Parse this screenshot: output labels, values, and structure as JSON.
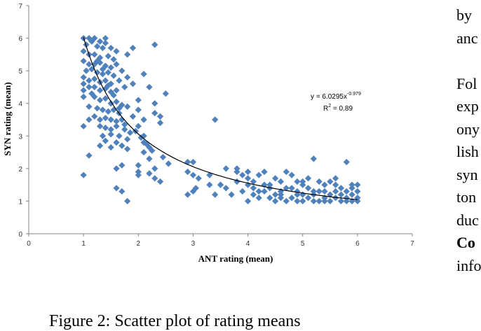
{
  "caption": "Figure 2: Scatter plot of rating means",
  "side_text": {
    "lines": [
      {
        "text": "by",
        "bold": false
      },
      {
        "text": "anc",
        "bold": false
      },
      {
        "text": "",
        "bold": false
      },
      {
        "text": "Fol",
        "bold": false
      },
      {
        "text": "exp",
        "bold": false
      },
      {
        "text": "ony",
        "bold": false
      },
      {
        "text": "lish",
        "bold": false
      },
      {
        "text": "syn",
        "bold": false
      },
      {
        "text": "ton",
        "bold": false
      },
      {
        "text": "duc",
        "bold": false
      },
      {
        "text": "Co",
        "bold": true
      },
      {
        "text": "info",
        "bold": false
      }
    ]
  },
  "chart_data": {
    "type": "scatter",
    "xlabel": "ANT rating (mean)",
    "ylabel": "SYN rating (mean)",
    "xlim": [
      0,
      7
    ],
    "ylim": [
      0,
      7
    ],
    "xticks": [
      0,
      1,
      2,
      3,
      4,
      5,
      6,
      7
    ],
    "yticks": [
      0,
      1,
      2,
      3,
      4,
      5,
      6,
      7
    ],
    "grid": false,
    "marker_color": "#4f81bd",
    "trendline": {
      "type": "power",
      "a": 6.0295,
      "b": -0.979,
      "x_range": [
        1,
        6
      ],
      "equation_prefix": "y = 6.0295x",
      "equation_exponent": "-0.979",
      "r2_prefix": "R",
      "r2_suffix": " = 0.89"
    },
    "points": [
      [
        1.0,
        6.0
      ],
      [
        1.1,
        6.0
      ],
      [
        1.15,
        5.9
      ],
      [
        1.2,
        6.0
      ],
      [
        1.3,
        5.9
      ],
      [
        1.4,
        5.85
      ],
      [
        1.4,
        6.0
      ],
      [
        1.05,
        5.8
      ],
      [
        1.25,
        5.75
      ],
      [
        1.35,
        5.7
      ],
      [
        1.5,
        5.7
      ],
      [
        1.6,
        5.6
      ],
      [
        1.8,
        5.5
      ],
      [
        1.9,
        5.7
      ],
      [
        2.3,
        5.8
      ],
      [
        1.0,
        5.6
      ],
      [
        1.1,
        5.5
      ],
      [
        1.2,
        5.5
      ],
      [
        1.3,
        5.4
      ],
      [
        1.45,
        5.45
      ],
      [
        1.55,
        5.35
      ],
      [
        1.0,
        5.3
      ],
      [
        1.1,
        5.2
      ],
      [
        1.2,
        5.2
      ],
      [
        1.3,
        5.25
      ],
      [
        1.4,
        5.15
      ],
      [
        1.5,
        5.1
      ],
      [
        1.6,
        5.2
      ],
      [
        1.7,
        5.0
      ],
      [
        1.05,
        5.0
      ],
      [
        1.15,
        5.05
      ],
      [
        1.25,
        4.95
      ],
      [
        1.35,
        4.9
      ],
      [
        1.45,
        4.95
      ],
      [
        1.55,
        4.85
      ],
      [
        1.0,
        4.8
      ],
      [
        1.1,
        4.7
      ],
      [
        1.2,
        4.75
      ],
      [
        1.3,
        4.65
      ],
      [
        1.4,
        4.7
      ],
      [
        1.5,
        4.6
      ],
      [
        1.65,
        4.7
      ],
      [
        1.8,
        4.8
      ],
      [
        2.1,
        4.9
      ],
      [
        1.0,
        4.6
      ],
      [
        1.1,
        4.5
      ],
      [
        1.2,
        4.5
      ],
      [
        1.3,
        4.4
      ],
      [
        1.4,
        4.45
      ],
      [
        1.5,
        4.35
      ],
      [
        1.6,
        4.4
      ],
      [
        1.75,
        4.5
      ],
      [
        1.9,
        4.6
      ],
      [
        2.2,
        4.5
      ],
      [
        2.5,
        4.3
      ],
      [
        1.0,
        4.2
      ],
      [
        1.2,
        4.2
      ],
      [
        1.3,
        4.1
      ],
      [
        1.4,
        4.15
      ],
      [
        1.5,
        4.0
      ],
      [
        1.6,
        4.05
      ],
      [
        1.7,
        3.95
      ],
      [
        2.0,
        4.1
      ],
      [
        2.3,
        4.0
      ],
      [
        1.1,
        3.9
      ],
      [
        1.25,
        3.85
      ],
      [
        1.35,
        3.8
      ],
      [
        1.45,
        3.75
      ],
      [
        1.55,
        3.8
      ],
      [
        1.65,
        3.7
      ],
      [
        1.8,
        3.9
      ],
      [
        2.0,
        3.8
      ],
      [
        2.3,
        3.7
      ],
      [
        1.2,
        3.6
      ],
      [
        1.3,
        3.5
      ],
      [
        1.4,
        3.55
      ],
      [
        1.5,
        3.5
      ],
      [
        1.6,
        3.45
      ],
      [
        1.7,
        3.5
      ],
      [
        1.9,
        3.6
      ],
      [
        2.1,
        3.5
      ],
      [
        2.4,
        3.6
      ],
      [
        1.3,
        3.3
      ],
      [
        1.4,
        3.25
      ],
      [
        1.5,
        3.2
      ],
      [
        1.6,
        3.3
      ],
      [
        1.75,
        3.2
      ],
      [
        2.0,
        3.3
      ],
      [
        2.4,
        3.4
      ],
      [
        1.35,
        3.0
      ],
      [
        1.5,
        3.05
      ],
      [
        1.65,
        3.0
      ],
      [
        1.85,
        3.1
      ],
      [
        2.1,
        3.0
      ],
      [
        1.4,
        2.85
      ],
      [
        1.6,
        2.8
      ],
      [
        1.8,
        2.9
      ],
      [
        2.1,
        2.8
      ],
      [
        1.3,
        2.7
      ],
      [
        1.5,
        2.65
      ],
      [
        1.7,
        2.7
      ],
      [
        2.2,
        2.65
      ],
      [
        1.8,
        2.6
      ],
      [
        2.1,
        2.5
      ],
      [
        2.2,
        2.3
      ],
      [
        2.0,
        2.1
      ],
      [
        1.6,
        2.0
      ],
      [
        1.7,
        2.1
      ],
      [
        2.0,
        1.9
      ],
      [
        2.0,
        1.8
      ],
      [
        2.2,
        1.85
      ],
      [
        2.3,
        2.0
      ],
      [
        2.3,
        1.7
      ],
      [
        2.4,
        1.6
      ],
      [
        1.6,
        1.4
      ],
      [
        1.7,
        1.3
      ],
      [
        1.8,
        1.0
      ],
      [
        1.0,
        3.3
      ],
      [
        1.0,
        1.8
      ],
      [
        1.1,
        2.4
      ],
      [
        1.0,
        4.4
      ],
      [
        1.1,
        3.5
      ],
      [
        1.15,
        4.3
      ],
      [
        1.25,
        5.3
      ],
      [
        1.35,
        5.05
      ],
      [
        1.45,
        4.55
      ],
      [
        1.55,
        4.25
      ],
      [
        1.65,
        3.85
      ],
      [
        1.75,
        3.35
      ],
      [
        1.95,
        3.15
      ],
      [
        2.05,
        2.95
      ],
      [
        2.15,
        2.75
      ],
      [
        2.25,
        2.55
      ],
      [
        2.45,
        2.35
      ],
      [
        2.55,
        2.15
      ],
      [
        2.9,
        2.2
      ],
      [
        3.0,
        2.2
      ],
      [
        2.9,
        1.9
      ],
      [
        3.0,
        1.8
      ],
      [
        3.1,
        1.7
      ],
      [
        3.05,
        1.4
      ],
      [
        3.0,
        1.3
      ],
      [
        2.9,
        1.2
      ],
      [
        3.4,
        3.5
      ],
      [
        3.3,
        1.8
      ],
      [
        3.5,
        1.5
      ],
      [
        3.4,
        1.2
      ],
      [
        3.6,
        1.4
      ],
      [
        3.6,
        2.0
      ],
      [
        3.8,
        1.9
      ],
      [
        3.8,
        2.0
      ],
      [
        3.9,
        1.8
      ],
      [
        4.0,
        1.9
      ],
      [
        4.0,
        1.7
      ],
      [
        4.1,
        1.6
      ],
      [
        4.2,
        1.8
      ],
      [
        4.3,
        1.9
      ],
      [
        4.3,
        1.5
      ],
      [
        4.4,
        1.4
      ],
      [
        4.5,
        1.7
      ],
      [
        4.6,
        1.6
      ],
      [
        4.7,
        1.9
      ],
      [
        4.8,
        1.8
      ],
      [
        4.9,
        1.6
      ],
      [
        5.0,
        1.5
      ],
      [
        5.1,
        1.7
      ],
      [
        5.2,
        2.3
      ],
      [
        5.3,
        1.6
      ],
      [
        5.4,
        1.5
      ],
      [
        5.5,
        1.6
      ],
      [
        5.6,
        1.7
      ],
      [
        5.7,
        1.4
      ],
      [
        5.8,
        2.2
      ],
      [
        5.9,
        1.5
      ],
      [
        6.0,
        1.5
      ],
      [
        3.7,
        1.2
      ],
      [
        3.9,
        1.3
      ],
      [
        4.0,
        1.0
      ],
      [
        4.1,
        1.2
      ],
      [
        4.2,
        1.1
      ],
      [
        4.4,
        1.1
      ],
      [
        4.5,
        1.0
      ],
      [
        4.6,
        1.2
      ],
      [
        4.7,
        1.0
      ],
      [
        4.8,
        1.1
      ],
      [
        4.9,
        1.0
      ],
      [
        5.0,
        1.0
      ],
      [
        5.1,
        1.1
      ],
      [
        5.2,
        1.0
      ],
      [
        5.3,
        1.0
      ],
      [
        5.4,
        1.0
      ],
      [
        5.5,
        1.0
      ],
      [
        5.6,
        1.1
      ],
      [
        5.7,
        1.0
      ],
      [
        5.8,
        1.0
      ],
      [
        5.9,
        1.0
      ],
      [
        6.0,
        1.0
      ],
      [
        4.3,
        1.3
      ],
      [
        4.6,
        1.3
      ],
      [
        4.8,
        1.4
      ],
      [
        5.0,
        1.2
      ],
      [
        5.2,
        1.3
      ],
      [
        5.4,
        1.3
      ],
      [
        5.6,
        1.3
      ],
      [
        5.8,
        1.3
      ],
      [
        6.0,
        1.3
      ],
      [
        3.5,
        1.5
      ],
      [
        3.8,
        1.6
      ],
      [
        4.1,
        1.4
      ],
      [
        4.4,
        1.5
      ],
      [
        4.7,
        1.4
      ],
      [
        5.1,
        1.4
      ],
      [
        5.3,
        1.3
      ],
      [
        5.5,
        1.2
      ],
      [
        5.7,
        1.2
      ],
      [
        5.9,
        1.2
      ],
      [
        6.0,
        1.1
      ],
      [
        4.5,
        1.2
      ],
      [
        4.9,
        1.3
      ],
      [
        5.2,
        1.2
      ],
      [
        5.6,
        1.5
      ],
      [
        5.8,
        1.1
      ],
      [
        3.3,
        1.5
      ],
      [
        4.0,
        1.5
      ],
      [
        4.2,
        1.3
      ],
      [
        5.0,
        1.6
      ],
      [
        5.4,
        1.1
      ],
      [
        5.9,
        1.4
      ],
      [
        4.6,
        1.1
      ],
      [
        4.9,
        1.2
      ]
    ]
  }
}
